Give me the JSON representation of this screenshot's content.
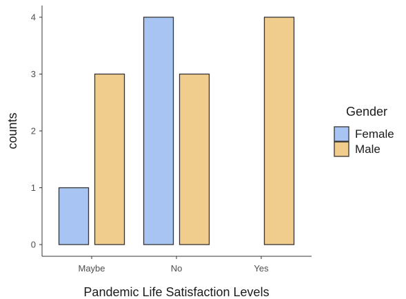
{
  "chart_data": {
    "type": "bar",
    "categories": [
      "Maybe",
      "No",
      "Yes"
    ],
    "series": [
      {
        "name": "Female",
        "values": [
          1,
          4,
          0
        ],
        "color": "#A7C4F2"
      },
      {
        "name": "Male",
        "values": [
          3,
          3,
          4
        ],
        "color": "#F0CD8C"
      }
    ],
    "xlabel": "Pandemic Life Satisfaction Levels",
    "ylabel": "counts",
    "yticks": [
      "0",
      "1",
      "2",
      "3",
      "4"
    ],
    "ylim": [
      0,
      4
    ],
    "legend": {
      "title": "Gender",
      "position": "right"
    },
    "grid": false,
    "bar_outline_color": "#333333"
  }
}
